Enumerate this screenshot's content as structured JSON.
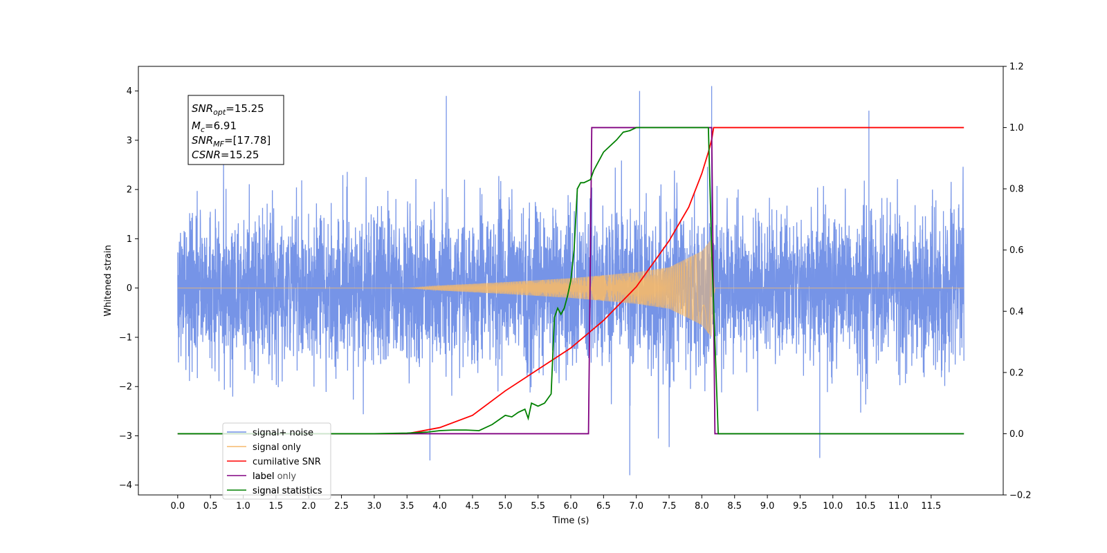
{
  "chart_data": {
    "type": "line",
    "xlabel": "Time (s)",
    "ylabel": "Whitened strain",
    "xlim": [
      -0.6,
      12.6
    ],
    "ylim": [
      -4.2,
      4.5
    ],
    "y2lim": [
      -0.2,
      1.2
    ],
    "x_ticks": [
      "0.0",
      "0.5",
      "1.0",
      "1.5",
      "2.0",
      "2.5",
      "3.0",
      "3.5",
      "4.0",
      "4.5",
      "5.0",
      "5.5",
      "6.0",
      "6.5",
      "7.0",
      "7.5",
      "8.0",
      "8.5",
      "9.0",
      "9.5",
      "10.0",
      "10.5",
      "11.0",
      "11.5"
    ],
    "y_ticks": [
      "−4",
      "−3",
      "−2",
      "−1",
      "0",
      "1",
      "2",
      "3",
      "4"
    ],
    "y2_ticks": [
      "−0.2",
      "0.0",
      "0.2",
      "0.4",
      "0.6",
      "0.8",
      "1.0",
      "1.2"
    ],
    "grid": false,
    "legend": {
      "placement": "lower-left",
      "entries": [
        "signal+ noise",
        "signal only",
        "cumilative SNR",
        "label",
        "signal statistics"
      ],
      "ghost_text": [
        "label only",
        "signal statistics"
      ]
    },
    "annotation": {
      "lines": [
        {
          "base": "SNR",
          "sub": "opt",
          "value": "=15.25"
        },
        {
          "base": "M",
          "sub": "c",
          "value": "=6.91"
        },
        {
          "base": "SNR",
          "sub": "MF",
          "value": "=[17.78]"
        },
        {
          "base": "CSNR",
          "sub": "",
          "value": "=15.25"
        }
      ]
    },
    "series": [
      {
        "name": "signal+ noise",
        "axis": "left",
        "color": "#6f8ee6",
        "t_range": [
          0.0,
          12.0
        ],
        "noise_std": 1.0,
        "peaks": [
          [
            4.1,
            3.9
          ],
          [
            7.05,
            4.0
          ],
          [
            8.15,
            4.1
          ],
          [
            10.55,
            3.6
          ],
          [
            6.9,
            -3.8
          ],
          [
            9.8,
            -3.45
          ],
          [
            3.85,
            -3.5
          ]
        ]
      },
      {
        "name": "signal only",
        "axis": "left",
        "color": "#f5b96b",
        "envelope": {
          "x": [
            0.0,
            3.5,
            4.0,
            5.0,
            6.0,
            7.0,
            7.5,
            8.0,
            8.15,
            8.2,
            12.0
          ],
          "y": [
            0.0,
            0.0,
            0.05,
            0.12,
            0.2,
            0.32,
            0.42,
            0.75,
            1.0,
            0.0,
            0.0
          ]
        }
      },
      {
        "name": "cumilative SNR",
        "axis": "right",
        "color": "#ff0000",
        "x": [
          0.0,
          3.5,
          4.0,
          4.5,
          5.0,
          5.5,
          6.0,
          6.5,
          7.0,
          7.5,
          7.8,
          8.0,
          8.1,
          8.15,
          8.18,
          12.0
        ],
        "y": [
          0.0,
          0.0,
          0.02,
          0.06,
          0.14,
          0.21,
          0.28,
          0.37,
          0.48,
          0.63,
          0.74,
          0.85,
          0.92,
          0.96,
          1.0,
          1.0
        ]
      },
      {
        "name": "label",
        "axis": "right",
        "color": "#800080",
        "x": [
          0.0,
          6.27,
          6.32,
          8.15,
          8.2,
          12.0
        ],
        "y": [
          0.0,
          0.0,
          1.0,
          1.0,
          0.0,
          0.0
        ]
      },
      {
        "name": "signal statistics",
        "axis": "right",
        "color": "#008000",
        "x": [
          0.0,
          3.0,
          3.5,
          3.8,
          4.0,
          4.2,
          4.4,
          4.6,
          4.8,
          5.0,
          5.1,
          5.2,
          5.3,
          5.35,
          5.4,
          5.5,
          5.6,
          5.7,
          5.75,
          5.8,
          5.85,
          5.9,
          5.95,
          6.0,
          6.05,
          6.1,
          6.15,
          6.2,
          6.3,
          6.35,
          6.4,
          6.5,
          6.6,
          6.7,
          6.8,
          6.9,
          7.0,
          7.6,
          8.1,
          8.15,
          8.2,
          8.25,
          12.0
        ],
        "y": [
          0.0,
          0.0,
          0.002,
          0.005,
          0.01,
          0.012,
          0.012,
          0.01,
          0.03,
          0.06,
          0.055,
          0.07,
          0.08,
          0.05,
          0.1,
          0.09,
          0.1,
          0.13,
          0.38,
          0.41,
          0.39,
          0.41,
          0.45,
          0.5,
          0.6,
          0.8,
          0.82,
          0.82,
          0.83,
          0.86,
          0.88,
          0.92,
          0.94,
          0.96,
          0.985,
          0.99,
          1.0,
          1.0,
          1.0,
          0.6,
          0.3,
          0.0,
          0.0
        ]
      }
    ]
  }
}
